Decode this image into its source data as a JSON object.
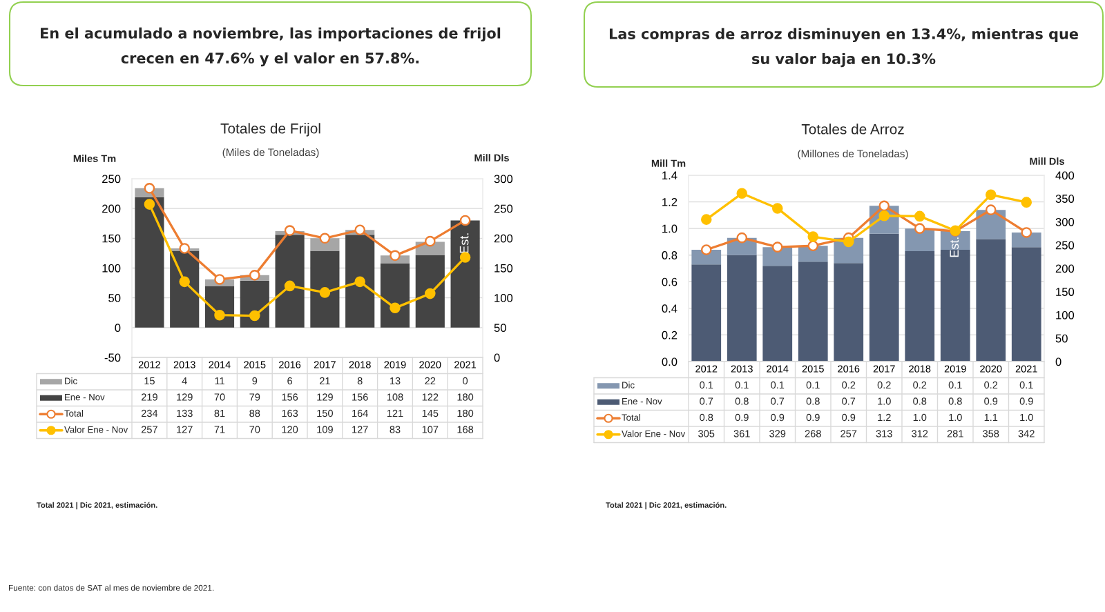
{
  "chart_data": [
    {
      "type": "bar",
      "title": "Totales de Frijol",
      "subtitle": "(Miles de Toneladas)",
      "ylabel": "Miles Tm",
      "y2label": "Mill Dls",
      "categories": [
        "2012",
        "2013",
        "2014",
        "2015",
        "2016",
        "2017",
        "2018",
        "2019",
        "2020",
        "2021"
      ],
      "stacked": true,
      "series": [
        {
          "name": "Ene - Nov",
          "color": "#444444",
          "values": [
            219,
            129,
            70,
            79,
            156,
            129,
            156,
            108,
            122,
            180
          ]
        },
        {
          "name": "Dic",
          "color": "#a6a6a6",
          "values": [
            15,
            4,
            11,
            9,
            6,
            21,
            8,
            13,
            22,
            0
          ]
        },
        {
          "name": "Total",
          "type": "line",
          "color": "#ed7d31",
          "values": [
            234,
            133,
            81,
            88,
            163,
            150,
            164,
            121,
            145,
            180
          ]
        },
        {
          "name": "Valor Ene - Nov",
          "type": "line",
          "axis": "y2",
          "color": "#ffc000",
          "values": [
            257,
            127,
            71,
            70,
            120,
            109,
            127,
            83,
            107,
            168
          ]
        }
      ],
      "ylim": [
        -50,
        250
      ],
      "yticks": [
        -50,
        0,
        50,
        100,
        150,
        200,
        250
      ],
      "y2lim": [
        0,
        300
      ],
      "y2ticks": [
        0,
        50,
        100,
        150,
        200,
        250,
        300
      ],
      "grid": "y",
      "legend": "bottom",
      "marker": "circle",
      "data_labels": true,
      "annotations": [
        "En el acumulado a noviembre, las importaciones de frijol crecen en 47.6% y el valor en 57.8%.",
        "Total 2021 | Dic 2021, estimación.",
        "Est.",
        "Fuente: con datos de SAT al mes de noviembre de 2021."
      ]
    },
    {
      "type": "bar",
      "title": "Totales de Arroz",
      "subtitle": "(Millones de Toneladas)",
      "ylabel": "Mill Tm",
      "y2label": "Mill Dls",
      "categories": [
        "2012",
        "2013",
        "2014",
        "2015",
        "2016",
        "2017",
        "2018",
        "2019",
        "2020",
        "2021"
      ],
      "stacked": true,
      "series": [
        {
          "name": "Ene - Nov",
          "color": "#4d5b74",
          "values": [
            0.73,
            0.8,
            0.72,
            0.75,
            0.74,
            0.96,
            0.83,
            0.84,
            0.92,
            0.86
          ],
          "value_labels": [
            "0.7",
            "0.8",
            "0.7",
            "0.8",
            "0.7",
            "1.0",
            "0.8",
            "0.8",
            "0.9",
            "0.9"
          ]
        },
        {
          "name": "Dic",
          "color": "#8497b0",
          "values": [
            0.11,
            0.13,
            0.14,
            0.12,
            0.19,
            0.21,
            0.17,
            0.14,
            0.22,
            0.11
          ],
          "value_labels": [
            "0.1",
            "0.1",
            "0.1",
            "0.1",
            "0.2",
            "0.2",
            "0.2",
            "0.1",
            "0.2",
            "0.1"
          ]
        },
        {
          "name": "Total",
          "type": "line",
          "color": "#ed7d31",
          "values": [
            0.84,
            0.93,
            0.86,
            0.87,
            0.93,
            1.17,
            1.0,
            0.98,
            1.14,
            0.97
          ],
          "value_labels": [
            "0.8",
            "0.9",
            "0.9",
            "0.9",
            "0.9",
            "1.2",
            "1.0",
            "1.0",
            "1.1",
            "1.0"
          ]
        },
        {
          "name": "Valor Ene - Nov",
          "type": "line",
          "axis": "y2",
          "color": "#ffc000",
          "values": [
            305,
            361,
            329,
            268,
            257,
            313,
            312,
            281,
            358,
            342
          ],
          "value_labels": [
            "305",
            "361",
            "329",
            "268",
            "257",
            "313",
            "312",
            "281",
            "358",
            "342"
          ]
        }
      ],
      "ylim": [
        0,
        1.4
      ],
      "yticks": [
        {
          "value": 0,
          "label": "0.0"
        },
        0.2,
        0.4,
        0.6,
        0.8,
        {
          "value": 1,
          "label": "1.0"
        },
        1.2,
        1.4
      ],
      "y2lim": [
        0,
        400
      ],
      "y2ticks": [
        0,
        50,
        100,
        150,
        200,
        250,
        300,
        350,
        400
      ],
      "grid": "y",
      "legend": "bottom",
      "marker": "circle",
      "annotations": [
        "Las compras de arroz disminuyen en 13.4%, mientras que su valor baja en 10.3%",
        "Total 2021 | Dic 2021, estimación.",
        "Est."
      ]
    }
  ]
}
